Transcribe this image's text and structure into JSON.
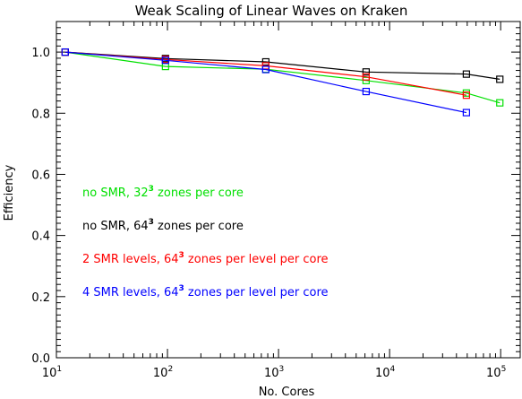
{
  "chart_data": {
    "type": "line",
    "title": "Weak Scaling of Linear Waves on Kraken",
    "xlabel": "No. Cores",
    "ylabel": "Efficiency",
    "xscale": "log",
    "xlim": [
      10,
      150000
    ],
    "ylim": [
      0,
      1.1
    ],
    "xticks": [
      {
        "value": 10,
        "base": "10",
        "exp": "1"
      },
      {
        "value": 100,
        "base": "10",
        "exp": "2"
      },
      {
        "value": 1000,
        "base": "10",
        "exp": "3"
      },
      {
        "value": 10000,
        "base": "10",
        "exp": "4"
      },
      {
        "value": 100000,
        "base": "10",
        "exp": "5"
      }
    ],
    "yticks": [
      {
        "value": 0.0,
        "label": "0.0"
      },
      {
        "value": 0.2,
        "label": "0.2"
      },
      {
        "value": 0.4,
        "label": "0.4"
      },
      {
        "value": 0.6,
        "label": "0.6"
      },
      {
        "value": 0.8,
        "label": "0.8"
      },
      {
        "value": 1.0,
        "label": "1.0"
      }
    ],
    "grid": false,
    "legend_position": "left",
    "series": [
      {
        "color": "#00e000",
        "legend": {
          "pre": "no SMR, 32",
          "sup": "3",
          "post": " zones per core"
        },
        "points": [
          [
            12,
            1.0
          ],
          [
            96,
            0.953
          ],
          [
            768,
            0.944
          ],
          [
            6144,
            0.907
          ],
          [
            49152,
            0.866
          ],
          [
            98304,
            0.834
          ]
        ]
      },
      {
        "color": "#000000",
        "legend": {
          "pre": "no SMR, 64",
          "sup": "3",
          "post": " zones per core"
        },
        "points": [
          [
            12,
            1.0
          ],
          [
            96,
            0.979
          ],
          [
            768,
            0.968
          ],
          [
            6144,
            0.935
          ],
          [
            49152,
            0.928
          ],
          [
            98304,
            0.911
          ]
        ]
      },
      {
        "color": "#ff0000",
        "legend": {
          "pre": "2 SMR levels, 64",
          "sup": "3",
          "post": " zones per level per core"
        },
        "points": [
          [
            12,
            1.0
          ],
          [
            96,
            0.976
          ],
          [
            768,
            0.955
          ],
          [
            6144,
            0.919
          ],
          [
            49152,
            0.859
          ]
        ]
      },
      {
        "color": "#0000ff",
        "legend": {
          "pre": "4 SMR levels, 64",
          "sup": "3",
          "post": " zones per level per core"
        },
        "points": [
          [
            12,
            1.0
          ],
          [
            96,
            0.973
          ],
          [
            768,
            0.943
          ],
          [
            6144,
            0.871
          ],
          [
            49152,
            0.802
          ]
        ]
      }
    ]
  }
}
